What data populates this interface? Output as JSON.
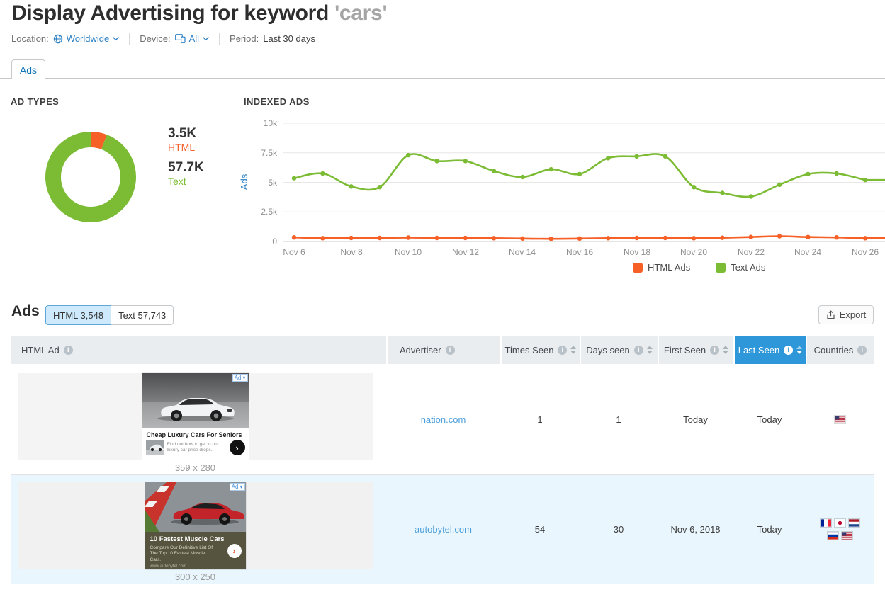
{
  "page": {
    "title_prefix": "Display Advertising for keyword ",
    "title_keyword": "'cars'"
  },
  "filters": {
    "location_label": "Location:",
    "location_value": "Worldwide",
    "device_label": "Device:",
    "device_value": "All",
    "period_label": "Period:",
    "period_value": "Last 30 days"
  },
  "tab": {
    "label": "Ads"
  },
  "ads_section": {
    "heading": "Ads",
    "toggle_html": "HTML 3,548",
    "toggle_text": "Text 57,743",
    "export_label": "Export"
  },
  "chart_data": [
    {
      "type": "pie",
      "title": "AD TYPES",
      "donut": true,
      "slices": [
        {
          "label": "HTML",
          "value": 3548,
          "display": "3.5K",
          "color": "#f65f26"
        },
        {
          "label": "Text",
          "value": 57743,
          "display": "57.7K",
          "color": "#7cbb34"
        }
      ]
    },
    {
      "type": "line",
      "title": "INDEXED ADS",
      "xlabel": "",
      "ylabel": "Ads",
      "ylim": [
        0,
        10000
      ],
      "grid": true,
      "legend_position": "bottom",
      "x": [
        "Nov 6",
        "Nov 7",
        "Nov 8",
        "Nov 9",
        "Nov 10",
        "Nov 11",
        "Nov 12",
        "Nov 13",
        "Nov 14",
        "Nov 15",
        "Nov 16",
        "Nov 17",
        "Nov 18",
        "Nov 19",
        "Nov 20",
        "Nov 21",
        "Nov 22",
        "Nov 23",
        "Nov 24",
        "Nov 25",
        "Nov 26"
      ],
      "x_tick_labels": [
        "Nov 6",
        "Nov 8",
        "Nov 10",
        "Nov 12",
        "Nov 14",
        "Nov 16",
        "Nov 18",
        "Nov 20",
        "Nov 22",
        "Nov 24",
        "Nov 26"
      ],
      "y_ticks": [
        "10k",
        "7.5k",
        "5k",
        "2.5k",
        "0"
      ],
      "y_grid_values": [
        10000,
        7500,
        5000,
        2500,
        0
      ],
      "series": [
        {
          "name": "HTML Ads",
          "color": "#f65f26",
          "values": [
            350,
            280,
            300,
            300,
            330,
            300,
            300,
            280,
            250,
            230,
            250,
            280,
            300,
            300,
            280,
            320,
            380,
            450,
            380,
            350,
            280
          ]
        },
        {
          "name": "Text Ads",
          "color": "#7cbb34",
          "values": [
            5350,
            5750,
            4650,
            4600,
            7300,
            6800,
            6800,
            5950,
            5450,
            6100,
            5700,
            7050,
            7200,
            7200,
            4600,
            4100,
            3800,
            4800,
            5700,
            5750,
            5200
          ]
        }
      ]
    }
  ],
  "table": {
    "columns": [
      {
        "label": "HTML Ad",
        "info": true,
        "sortable": false
      },
      {
        "label": "Advertiser",
        "info": true,
        "sortable": false
      },
      {
        "label": "Times Seen",
        "info": true,
        "sortable": true
      },
      {
        "label": "Days seen",
        "info": true,
        "sortable": true
      },
      {
        "label": "First Seen",
        "info": true,
        "sortable": true
      },
      {
        "label": "Last Seen",
        "info": true,
        "sortable": true,
        "active_sort": true
      },
      {
        "label": "Countries",
        "info": true,
        "sortable": false
      }
    ],
    "rows": [
      {
        "ad": {
          "badge": "Ad",
          "headline": "Cheap Luxury Cars For Seniors",
          "body": "Find out how to get in on luxury car price drops.",
          "size": "359 x 280"
        },
        "advertiser": "nation.com",
        "times_seen": "1",
        "days_seen": "1",
        "first_seen": "Today",
        "last_seen": "Today",
        "countries": [
          "us"
        ]
      },
      {
        "ad": {
          "badge": "Ad",
          "headline": "10 Fastest Muscle Cars",
          "body": "Compare Our Definitive List Of The Top 10 Fastest Muscle Cars.",
          "url": "www.autobytel.com",
          "size": "300 x 250"
        },
        "advertiser": "autobytel.com",
        "times_seen": "54",
        "days_seen": "30",
        "first_seen": "Nov 6, 2018",
        "last_seen": "Today",
        "countries": [
          "fr",
          "jp",
          "nl",
          "ru",
          "us"
        ]
      }
    ]
  }
}
